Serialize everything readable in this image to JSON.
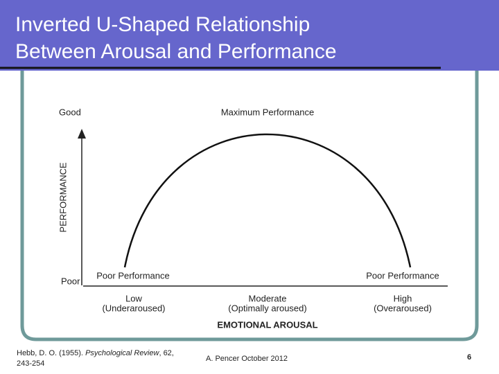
{
  "header": {
    "title_lines": [
      "Inverted U-Shaped Relationship",
      "Between Arousal and Performance"
    ]
  },
  "diagram": {
    "y_axis": {
      "label": "PERFORMANCE",
      "top": "Good",
      "bottom": "Poor"
    },
    "peak_label": "Maximum Performance",
    "left_end_label": "Poor Performance",
    "right_end_label": "Poor Performance",
    "x_categories": [
      {
        "name": "Low",
        "detail": "(Underaroused)"
      },
      {
        "name": "Moderate",
        "detail": "(Optimally aroused)"
      },
      {
        "name": "High",
        "detail": "(Overaroused)"
      }
    ],
    "x_axis": {
      "label": "EMOTIONAL AROUSAL"
    }
  },
  "footer": {
    "citation": {
      "authors": "Hebb, D. O. (1955).",
      "journal": "Psychological Review",
      "volume": ", 62,",
      "pages": "243-254"
    },
    "author_date": "A. Pencer October 2012",
    "page_number": "6"
  }
}
